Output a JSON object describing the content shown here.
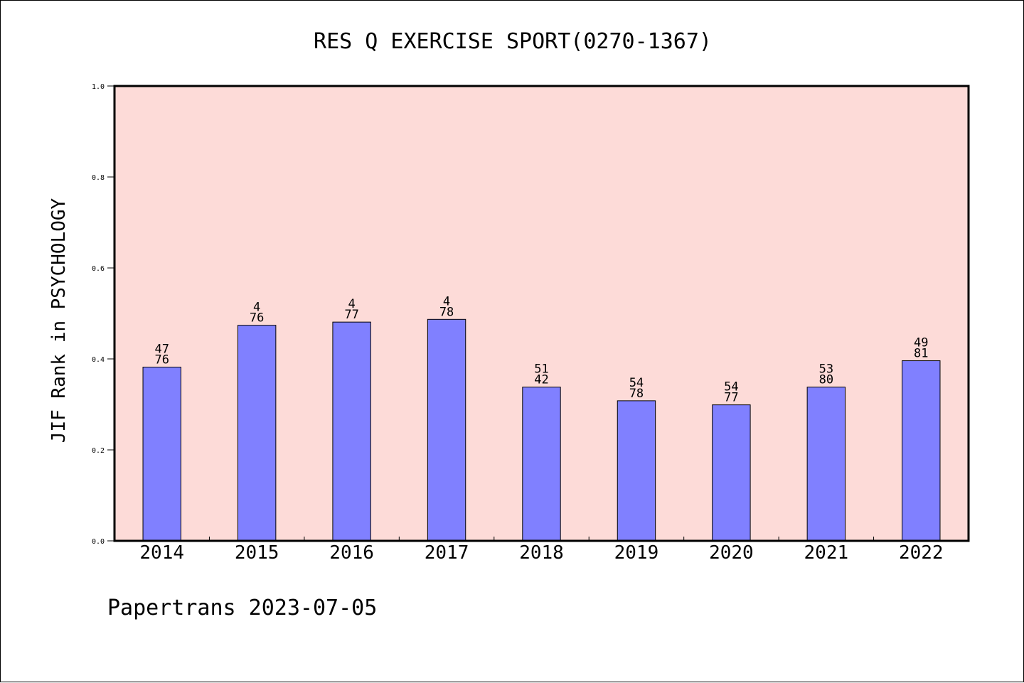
{
  "footer": {
    "text": "Papertrans 2023-07-05"
  },
  "chart_data": {
    "type": "bar",
    "title": "RES Q EXERCISE SPORT(0270-1367)",
    "xlabel": "",
    "ylabel": "JIF Rank in PSYCHOLOGY",
    "ylim": [
      0,
      1.0
    ],
    "yticks": [
      "0.0",
      "0.2",
      "0.4",
      "0.6",
      "0.8",
      "1.0"
    ],
    "categories": [
      "2014",
      "2015",
      "2016",
      "2017",
      "2018",
      "2019",
      "2020",
      "2021",
      "2022"
    ],
    "values": [
      0.382,
      0.474,
      0.481,
      0.487,
      0.338,
      0.308,
      0.299,
      0.338,
      0.396
    ],
    "labels_top": [
      "47",
      "4",
      "4",
      "4",
      "51",
      "54",
      "54",
      "53",
      "49"
    ],
    "labels_bottom": [
      "76",
      "76",
      "77",
      "78",
      "42",
      "78",
      "77",
      "80",
      "81"
    ],
    "grid": false,
    "colors": {
      "bar": "#8080ff",
      "plot_background": "#fddbd8",
      "axis": "#000000"
    }
  }
}
